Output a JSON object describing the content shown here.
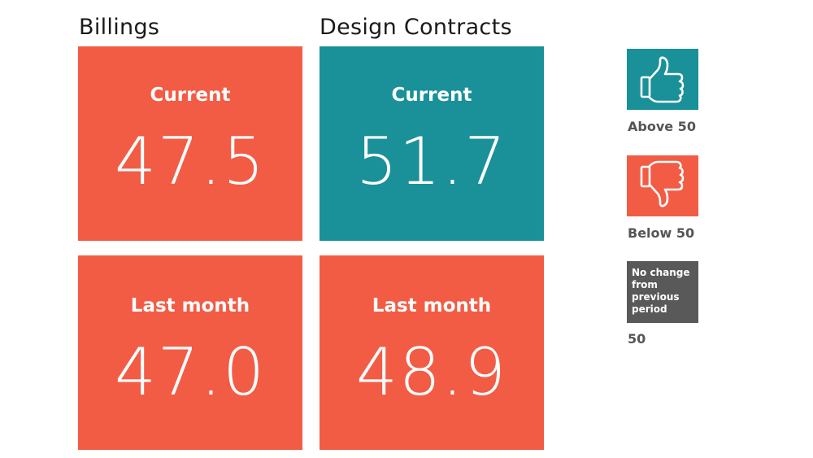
{
  "chart_data": {
    "type": "table",
    "columns": [
      {
        "title": "Billings",
        "current": {
          "label": "Current",
          "value": "47.5",
          "status": "below"
        },
        "last_month": {
          "label": "Last month",
          "value": "47.0",
          "status": "below"
        }
      },
      {
        "title": "Design Contracts",
        "current": {
          "label": "Current",
          "value": "51.7",
          "status": "above"
        },
        "last_month": {
          "label": "Last month",
          "value": "48.9",
          "status": "below"
        }
      }
    ],
    "threshold": 50
  },
  "legend": {
    "above": {
      "label": "Above 50",
      "icon": "thumbs-up-icon",
      "color": "#1a9099"
    },
    "below": {
      "label": "Below 50",
      "icon": "thumbs-down-icon",
      "color": "#f25c45"
    },
    "no_change": {
      "box_text": "No change from previous period",
      "label": "50",
      "color": "#595959"
    }
  },
  "colors": {
    "above": "#1a9099",
    "below": "#f25c45",
    "neutral": "#595959"
  }
}
